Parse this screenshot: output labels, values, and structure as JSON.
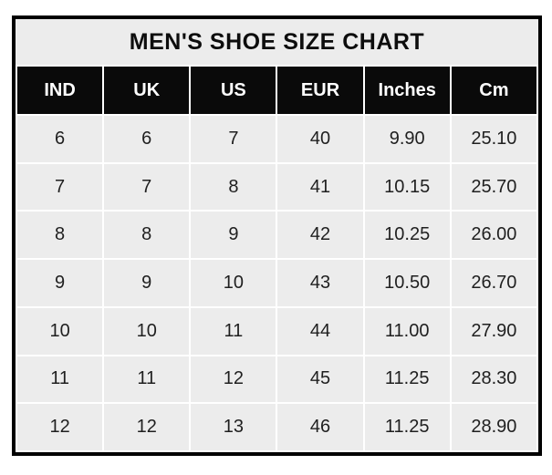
{
  "title": "MEN'S SHOE SIZE CHART",
  "colors": {
    "outer_border": "#000000",
    "header_bg": "#0a0a0a",
    "header_text": "#ffffff",
    "cell_bg": "#ececec",
    "gridline": "#ffffff",
    "title_bg": "#ececec",
    "cell_text": "#1f1f1f",
    "page_bg": "#ffffff"
  },
  "chart_data": {
    "type": "table",
    "title": "MEN'S SHOE SIZE CHART",
    "columns": [
      "IND",
      "UK",
      "US",
      "EUR",
      "Inches",
      "Cm"
    ],
    "rows": [
      [
        "6",
        "6",
        "7",
        "40",
        "9.90",
        "25.10"
      ],
      [
        "7",
        "7",
        "8",
        "41",
        "10.15",
        "25.70"
      ],
      [
        "8",
        "8",
        "9",
        "42",
        "10.25",
        "26.00"
      ],
      [
        "9",
        "9",
        "10",
        "43",
        "10.50",
        "26.70"
      ],
      [
        "10",
        "10",
        "11",
        "44",
        "11.00",
        "27.90"
      ],
      [
        "11",
        "11",
        "12",
        "45",
        "11.25",
        "28.30"
      ],
      [
        "12",
        "12",
        "13",
        "46",
        "11.25",
        "28.90"
      ]
    ]
  }
}
